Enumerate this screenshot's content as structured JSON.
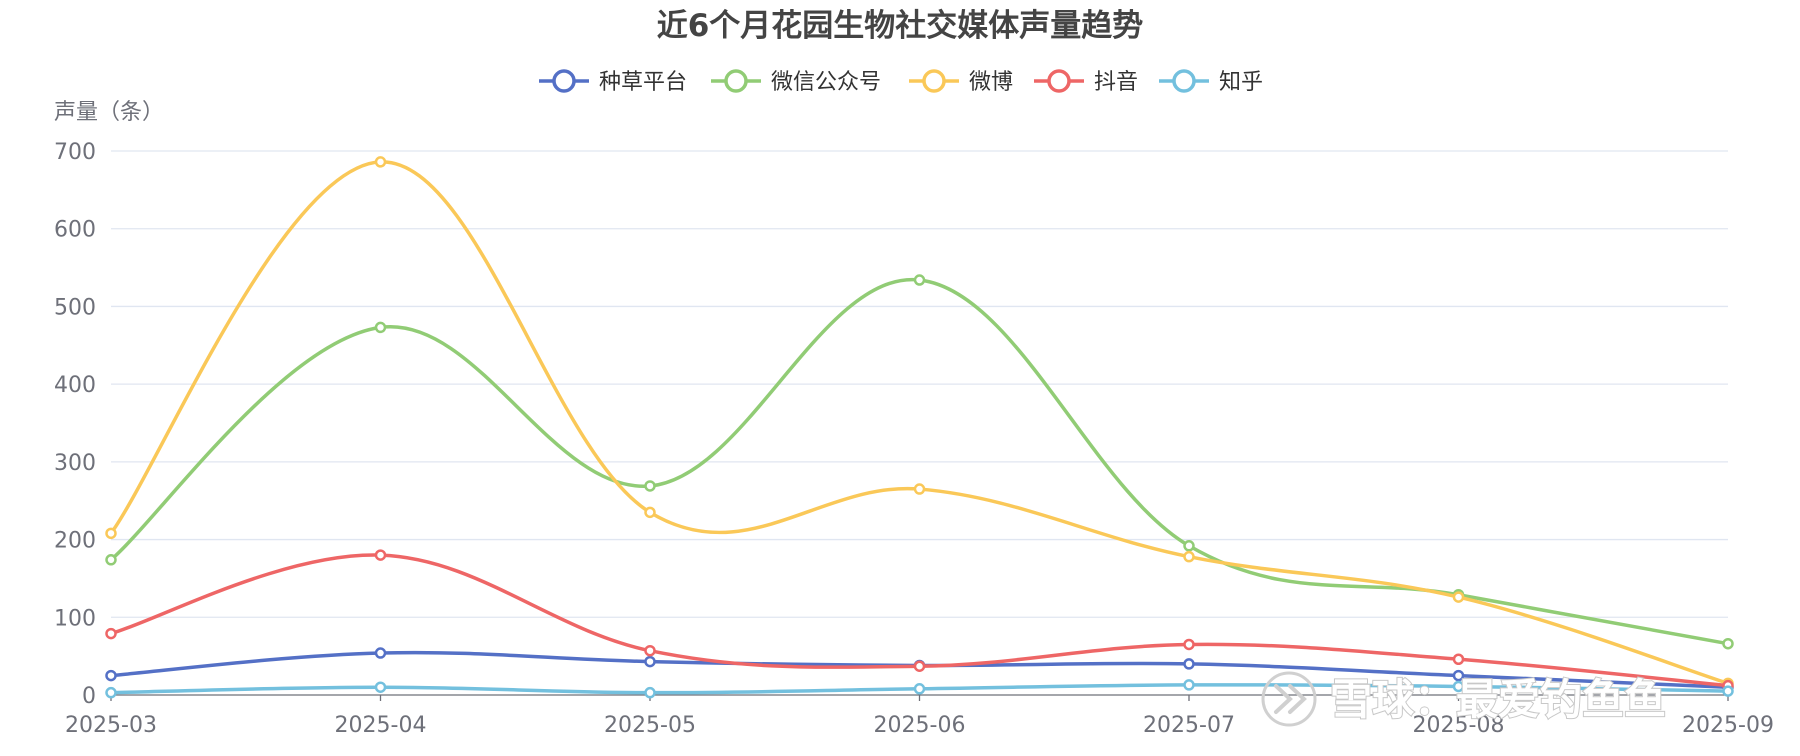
{
  "chart_data": {
    "type": "line",
    "title": "近6个月花园生物社交媒体声量趋势",
    "ylabel": "声量（条）",
    "xlabel": "",
    "categories": [
      "2025-03",
      "2025-04",
      "2025-05",
      "2025-06",
      "2025-07",
      "2025-08",
      "2025-09"
    ],
    "ylim": [
      0,
      700
    ],
    "yticks": [
      0,
      100,
      200,
      300,
      400,
      500,
      600,
      700
    ],
    "grid": true,
    "smooth": true,
    "legend_position": "top-center",
    "series": [
      {
        "name": "种草平台",
        "color": "#5470c6",
        "values": [
          25,
          54,
          43,
          38,
          40,
          25,
          10
        ]
      },
      {
        "name": "微信公众号",
        "color": "#91cc75",
        "values": [
          174,
          473,
          269,
          534,
          192,
          129,
          66
        ]
      },
      {
        "name": "微博",
        "color": "#fac858",
        "values": [
          208,
          686,
          235,
          265,
          178,
          126,
          15
        ]
      },
      {
        "name": "抖音",
        "color": "#ee6666",
        "values": [
          79,
          180,
          57,
          37,
          65,
          46,
          12
        ]
      },
      {
        "name": "知乎",
        "color": "#73c0de",
        "values": [
          3,
          10,
          3,
          8,
          13,
          11,
          5
        ]
      }
    ]
  },
  "watermark": {
    "text": "雪球：最爱钓鱼鱼",
    "icon": "xueqiu-logo-icon"
  }
}
